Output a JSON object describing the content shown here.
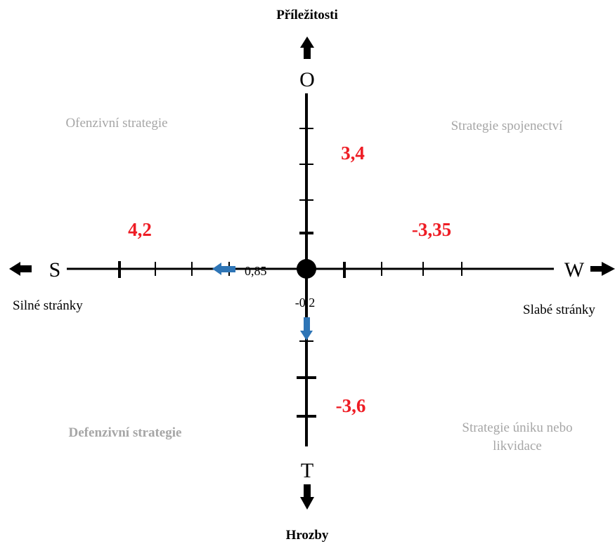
{
  "colors": {
    "axis": "#000000",
    "value_red": "#ee1c24",
    "quadrant_gray": "#a6a6a6",
    "arrow_blue": "#2e75b6"
  },
  "axes": {
    "top_label": "Příležitosti",
    "bottom_label": "Hrozby",
    "left_label": "Silné stránky",
    "right_label": "Slabé stránky",
    "letter_top": "O",
    "letter_bottom": "T",
    "letter_left": "S",
    "letter_right": "W"
  },
  "quadrants": {
    "top_left": "Ofenzivní strategie",
    "top_right": "Strategie spojenectví",
    "bottom_left": "Defenzivní strategie",
    "bottom_right_line1": "Strategie úniku nebo",
    "bottom_right_line2": "likvidace"
  },
  "values": {
    "strengths": "4,2",
    "weaknesses": "-3,35",
    "opportunities": "3,4",
    "threats": "-3,6",
    "result_x": "0,85",
    "result_y": "-0,2"
  }
}
